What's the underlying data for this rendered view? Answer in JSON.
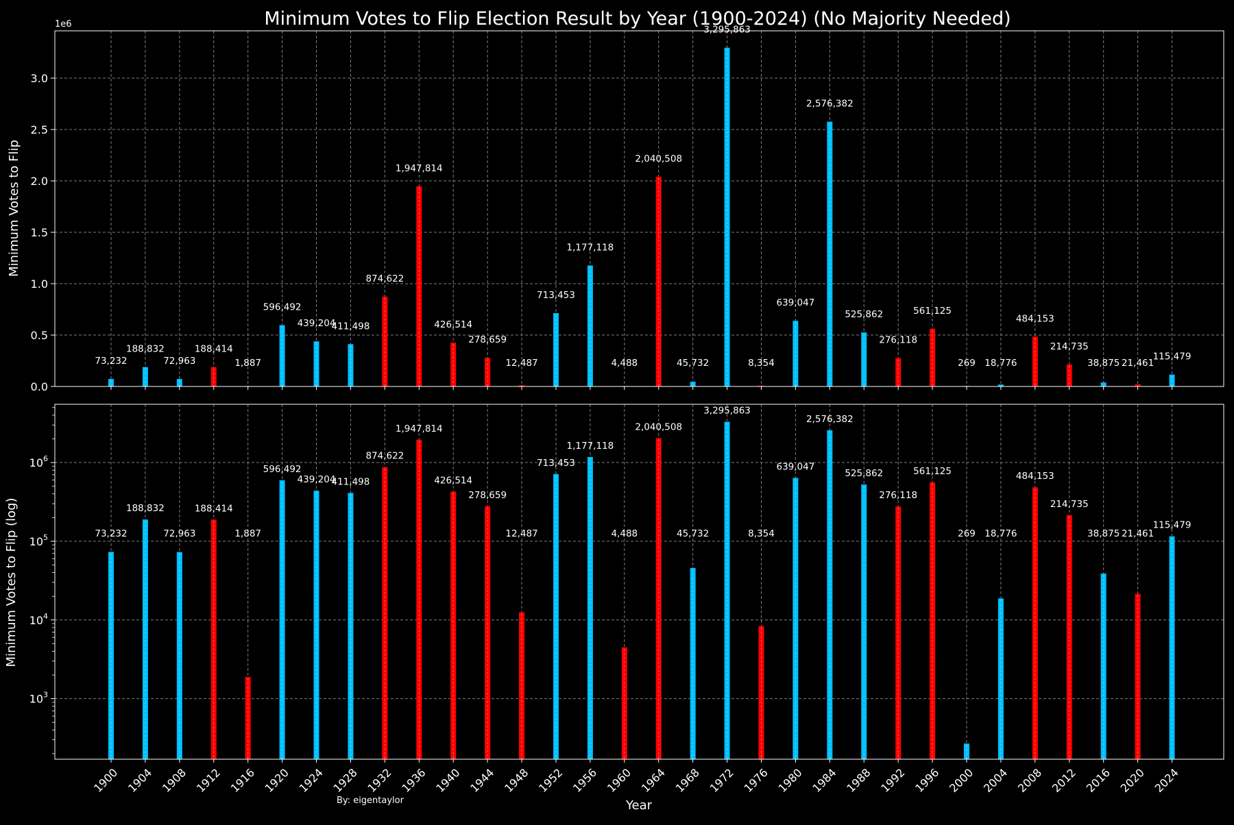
{
  "colors": {
    "background": "#000000",
    "republican": "#ff0000",
    "democrat": "#00bfff",
    "grid": "#808080",
    "text": "#ffffff"
  },
  "chart_data": [
    {
      "type": "bar",
      "title": "Minimum Votes to Flip Election Result by Year (1900-2024) (No Majority Needed)",
      "xlabel": "",
      "ylabel": "Minimum Votes to Flip",
      "scale": "linear",
      "offset_label": "1e6",
      "ylim": [
        0,
        3460000
      ],
      "yticks": [
        0,
        500000,
        1000000,
        1500000,
        2000000,
        2500000,
        3000000
      ],
      "ytick_labels": [
        "0.0",
        "0.5",
        "1.0",
        "1.5",
        "2.0",
        "2.5",
        "3.0"
      ],
      "grid": true,
      "legend": "none"
    },
    {
      "type": "bar",
      "title": "",
      "xlabel": "Year",
      "ylabel": "Minimum Votes to Flip (log)",
      "scale": "log",
      "ylim": [
        170,
        5500000
      ],
      "yticks": [
        1000,
        10000,
        100000,
        1000000
      ],
      "ytick_labels": [
        "10^3",
        "10^4",
        "10^5",
        "10^6"
      ],
      "grid": true,
      "legend": "none"
    }
  ],
  "series": {
    "categories": [
      "1900",
      "1904",
      "1908",
      "1912",
      "1916",
      "1920",
      "1924",
      "1928",
      "1932",
      "1936",
      "1940",
      "1944",
      "1948",
      "1952",
      "1956",
      "1960",
      "1964",
      "1968",
      "1972",
      "1976",
      "1980",
      "1984",
      "1988",
      "1992",
      "1996",
      "2000",
      "2004",
      "2008",
      "2012",
      "2016",
      "2020",
      "2024"
    ],
    "values": [
      73232,
      188832,
      72963,
      188414,
      1887,
      596492,
      439204,
      411498,
      874622,
      1947814,
      426514,
      278659,
      12487,
      713453,
      1177118,
      4488,
      2040508,
      45732,
      3295863,
      8354,
      639047,
      2576382,
      525862,
      276118,
      561125,
      269,
      18776,
      484153,
      214735,
      38875,
      21461,
      115479
    ],
    "value_labels": [
      "73,232",
      "188,832",
      "72,963",
      "188,414",
      "1,887",
      "596,492",
      "439,204",
      "411,498",
      "874,622",
      "1,947,814",
      "426,514",
      "278,659",
      "12,487",
      "713,453",
      "1,177,118",
      "4,488",
      "2,040,508",
      "45,732",
      "3,295,863",
      "8,354",
      "639,047",
      "2,576,382",
      "525,862",
      "276,118",
      "561,125",
      "269",
      "18,776",
      "484,153",
      "214,735",
      "38,875",
      "21,461",
      "115,479"
    ],
    "party": [
      "D",
      "D",
      "D",
      "R",
      "R",
      "D",
      "D",
      "D",
      "R",
      "R",
      "R",
      "R",
      "R",
      "D",
      "D",
      "R",
      "R",
      "D",
      "D",
      "R",
      "D",
      "D",
      "D",
      "R",
      "R",
      "D",
      "D",
      "R",
      "R",
      "D",
      "R",
      "D"
    ]
  },
  "credit": "By: eigentaylor"
}
